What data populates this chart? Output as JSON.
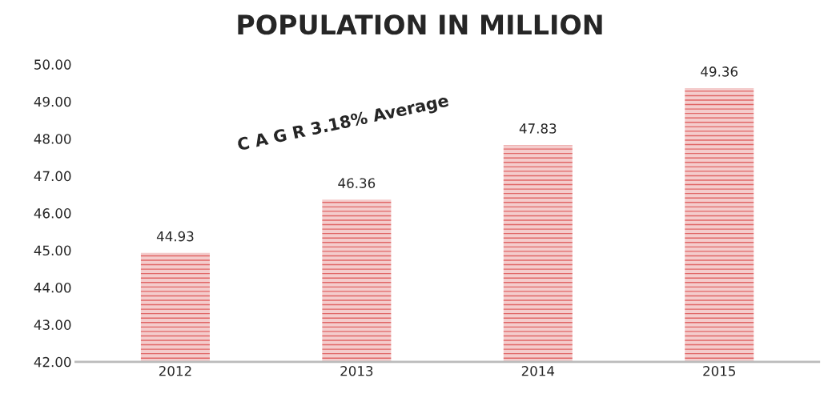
{
  "chart_data": {
    "type": "bar",
    "title": "POPULATION IN MILLION",
    "categories": [
      "2012",
      "2013",
      "2014",
      "2015"
    ],
    "values": [
      44.93,
      46.36,
      47.83,
      49.36
    ],
    "color": "#e06666",
    "ylim": [
      42,
      50
    ],
    "yticks": [
      {
        "value": 42,
        "label": "42.00"
      },
      {
        "value": 43,
        "label": "43.00"
      },
      {
        "value": 44,
        "label": "44.00"
      },
      {
        "value": 45,
        "label": "45.00"
      },
      {
        "value": 46,
        "label": "46.00"
      },
      {
        "value": 47,
        "label": "47.00"
      },
      {
        "value": 48,
        "label": "48.00"
      },
      {
        "value": 49,
        "label": "49.00"
      },
      {
        "value": 50,
        "label": "50.00"
      }
    ],
    "grid": false,
    "data_labels": true,
    "annotations": [
      "C A G R 3.18% Average"
    ]
  }
}
